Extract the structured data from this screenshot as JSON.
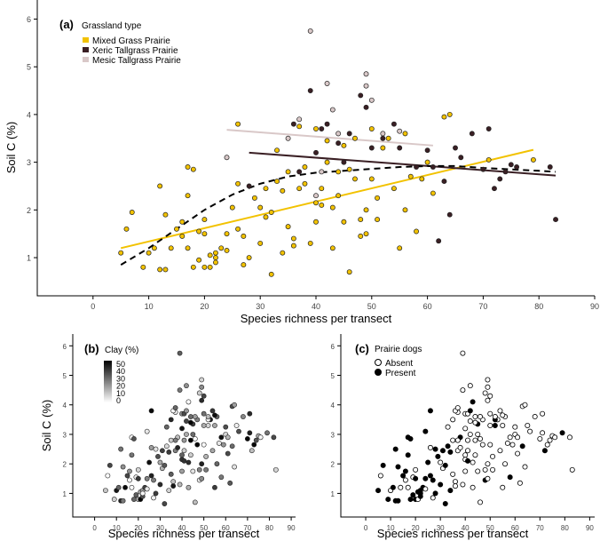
{
  "colors": {
    "mixed": "#f2c200",
    "xeric": "#3a1f24",
    "mesic": "#d9c8c8",
    "axis": "#000000",
    "tick_text": "#444444",
    "point_edge": "#222222"
  },
  "chart_data": [
    {
      "type": "scatter",
      "panel_label": "(a)",
      "xlabel": "Species richness per transect",
      "ylabel": "Soil C (%)",
      "xlim": [
        -10,
        90
      ],
      "ylim": [
        0.2,
        6.4
      ],
      "xticks": [
        "0",
        "10",
        "20",
        "30",
        "40",
        "50",
        "60",
        "70",
        "80",
        "90"
      ],
      "yticks": [
        "1",
        "2",
        "3",
        "4",
        "5",
        "6"
      ],
      "legend": {
        "title": "Grassland type",
        "position": "top-left",
        "entries": [
          "Mixed Grass Prairie",
          "Xeric Tallgrass Prairie",
          "Mesic Tallgrass Prairie"
        ]
      },
      "series": [
        {
          "name": "Mixed Grass Prairie",
          "points": [
            [
              5,
              1.1
            ],
            [
              6,
              1.6
            ],
            [
              7,
              1.95
            ],
            [
              9,
              0.8
            ],
            [
              10,
              1.1
            ],
            [
              11,
              1.2
            ],
            [
              12,
              2.5
            ],
            [
              12,
              0.75
            ],
            [
              13,
              0.75
            ],
            [
              13,
              1.9
            ],
            [
              14,
              1.2
            ],
            [
              15,
              1.6
            ],
            [
              16,
              1.75
            ],
            [
              16,
              1.45
            ],
            [
              17,
              2.9
            ],
            [
              17,
              2.3
            ],
            [
              17,
              1.2
            ],
            [
              18,
              0.8
            ],
            [
              18,
              2.85
            ],
            [
              19,
              1.55
            ],
            [
              19,
              0.95
            ],
            [
              20,
              0.8
            ],
            [
              20,
              1.8
            ],
            [
              20,
              1.5
            ],
            [
              21,
              1.05
            ],
            [
              21,
              0.8
            ],
            [
              22,
              0.9
            ],
            [
              22,
              1.1
            ],
            [
              22,
              1.0
            ],
            [
              23,
              1.2
            ],
            [
              24,
              1.5
            ],
            [
              24,
              1.15
            ],
            [
              25,
              2.05
            ],
            [
              26,
              3.8
            ],
            [
              26,
              2.55
            ],
            [
              26,
              1.6
            ],
            [
              27,
              1.45
            ],
            [
              27,
              0.85
            ],
            [
              28,
              1.0
            ],
            [
              29,
              2.25
            ],
            [
              30,
              2.05
            ],
            [
              30,
              1.3
            ],
            [
              31,
              2.45
            ],
            [
              31,
              1.85
            ],
            [
              32,
              0.65
            ],
            [
              32,
              1.95
            ],
            [
              33,
              3.25
            ],
            [
              33,
              2.6
            ],
            [
              34,
              2.4
            ],
            [
              34,
              1.1
            ],
            [
              35,
              2.8
            ],
            [
              35,
              1.65
            ],
            [
              36,
              1.4
            ],
            [
              36,
              1.25
            ],
            [
              37,
              3.75
            ],
            [
              37,
              2.45
            ],
            [
              38,
              2.9
            ],
            [
              38,
              2.55
            ],
            [
              39,
              1.3
            ],
            [
              40,
              3.7
            ],
            [
              40,
              2.15
            ],
            [
              40,
              1.75
            ],
            [
              41,
              2.45
            ],
            [
              41,
              2.1
            ],
            [
              42,
              3.45
            ],
            [
              42,
              3.0
            ],
            [
              43,
              2.05
            ],
            [
              43,
              1.2
            ],
            [
              44,
              2.3
            ],
            [
              44,
              2.8
            ],
            [
              45,
              3.35
            ],
            [
              45,
              1.75
            ],
            [
              46,
              2.85
            ],
            [
              46,
              0.7
            ],
            [
              47,
              3.5
            ],
            [
              47,
              2.65
            ],
            [
              48,
              1.8
            ],
            [
              48,
              1.45
            ],
            [
              49,
              2.0
            ],
            [
              49,
              1.5
            ],
            [
              50,
              3.7
            ],
            [
              50,
              2.65
            ],
            [
              51,
              1.8
            ],
            [
              51,
              2.25
            ],
            [
              52,
              3.3
            ],
            [
              53,
              3.5
            ],
            [
              54,
              2.45
            ],
            [
              55,
              1.2
            ],
            [
              56,
              2.0
            ],
            [
              56,
              3.6
            ],
            [
              57,
              2.7
            ],
            [
              58,
              1.55
            ],
            [
              59,
              2.65
            ],
            [
              60,
              3.0
            ],
            [
              61,
              2.35
            ],
            [
              63,
              3.95
            ],
            [
              64,
              4.0
            ],
            [
              71,
              3.05
            ],
            [
              79,
              3.05
            ]
          ],
          "trend": {
            "style": "solid",
            "x": [
              5,
              79
            ],
            "y": [
              1.2,
              3.26
            ]
          }
        },
        {
          "name": "Xeric Tallgrass Prairie",
          "points": [
            [
              28,
              2.5
            ],
            [
              36,
              3.8
            ],
            [
              37,
              2.8
            ],
            [
              39,
              4.5
            ],
            [
              40,
              3.2
            ],
            [
              41,
              3.7
            ],
            [
              42,
              3.8
            ],
            [
              44,
              3.4
            ],
            [
              45,
              3.0
            ],
            [
              46,
              3.6
            ],
            [
              48,
              4.4
            ],
            [
              49,
              4.15
            ],
            [
              50,
              3.3
            ],
            [
              52,
              3.5
            ],
            [
              54,
              3.8
            ],
            [
              55,
              3.3
            ],
            [
              58,
              2.9
            ],
            [
              60,
              3.25
            ],
            [
              61,
              2.9
            ],
            [
              62,
              1.35
            ],
            [
              63,
              2.6
            ],
            [
              64,
              1.9
            ],
            [
              65,
              3.3
            ],
            [
              66,
              3.1
            ],
            [
              68,
              3.6
            ],
            [
              70,
              2.85
            ],
            [
              71,
              3.7
            ],
            [
              72,
              2.45
            ],
            [
              73,
              2.65
            ],
            [
              74,
              2.8
            ],
            [
              75,
              2.95
            ],
            [
              76,
              2.9
            ],
            [
              82,
              2.9
            ],
            [
              83,
              1.8
            ]
          ],
          "trend": {
            "style": "solid",
            "x": [
              28,
              83
            ],
            "y": [
              3.2,
              2.72
            ]
          }
        },
        {
          "name": "Mesic Tallgrass Prairie",
          "points": [
            [
              24,
              3.1
            ],
            [
              35,
              3.5
            ],
            [
              37,
              3.9
            ],
            [
              39,
              5.75
            ],
            [
              40,
              2.3
            ],
            [
              41,
              2.8
            ],
            [
              42,
              4.65
            ],
            [
              43,
              4.1
            ],
            [
              44,
              3.6
            ],
            [
              49,
              4.6
            ],
            [
              49,
              4.85
            ],
            [
              50,
              4.3
            ],
            [
              52,
              3.6
            ],
            [
              55,
              3.65
            ]
          ],
          "trend": {
            "style": "solid",
            "x": [
              24,
              61
            ],
            "y": [
              3.68,
              3.35
            ]
          }
        }
      ],
      "overall_fit": {
        "style": "dashed",
        "x": [
          5,
          10,
          15,
          20,
          25,
          30,
          35,
          40,
          45,
          50,
          55,
          60,
          65,
          70,
          75,
          80,
          83
        ],
        "y": [
          0.85,
          1.2,
          1.6,
          2.0,
          2.32,
          2.55,
          2.7,
          2.78,
          2.82,
          2.86,
          2.9,
          2.92,
          2.92,
          2.88,
          2.85,
          2.82,
          2.8
        ]
      }
    },
    {
      "type": "scatter",
      "panel_label": "(b)",
      "xlabel": "Species richness per transect",
      "ylabel": "Soil C (%)",
      "xlim": [
        -10,
        92
      ],
      "ylim": [
        0.2,
        6.4
      ],
      "xticks": [
        "0",
        "10",
        "20",
        "30",
        "40",
        "50",
        "60",
        "70",
        "80",
        "90"
      ],
      "yticks": [
        "1",
        "2",
        "3",
        "4",
        "5",
        "6"
      ],
      "color_scale": {
        "title": "Clay (%)",
        "labels": [
          "50",
          "40",
          "30",
          "20",
          "10",
          "0"
        ],
        "min": 0,
        "max": 55
      }
    },
    {
      "type": "scatter",
      "panel_label": "(c)",
      "xlabel": "Species richness per transect",
      "ylabel": "",
      "xlim": [
        -10,
        92
      ],
      "ylim": [
        0.2,
        6.4
      ],
      "xticks": [
        "0",
        "10",
        "20",
        "30",
        "40",
        "50",
        "60",
        "70",
        "80",
        "90"
      ],
      "yticks": [
        "1",
        "2",
        "3",
        "4",
        "5",
        "6"
      ],
      "legend": {
        "title": "Prairie dogs",
        "position": "top-left",
        "entries": [
          "Absent",
          "Present"
        ]
      }
    }
  ]
}
